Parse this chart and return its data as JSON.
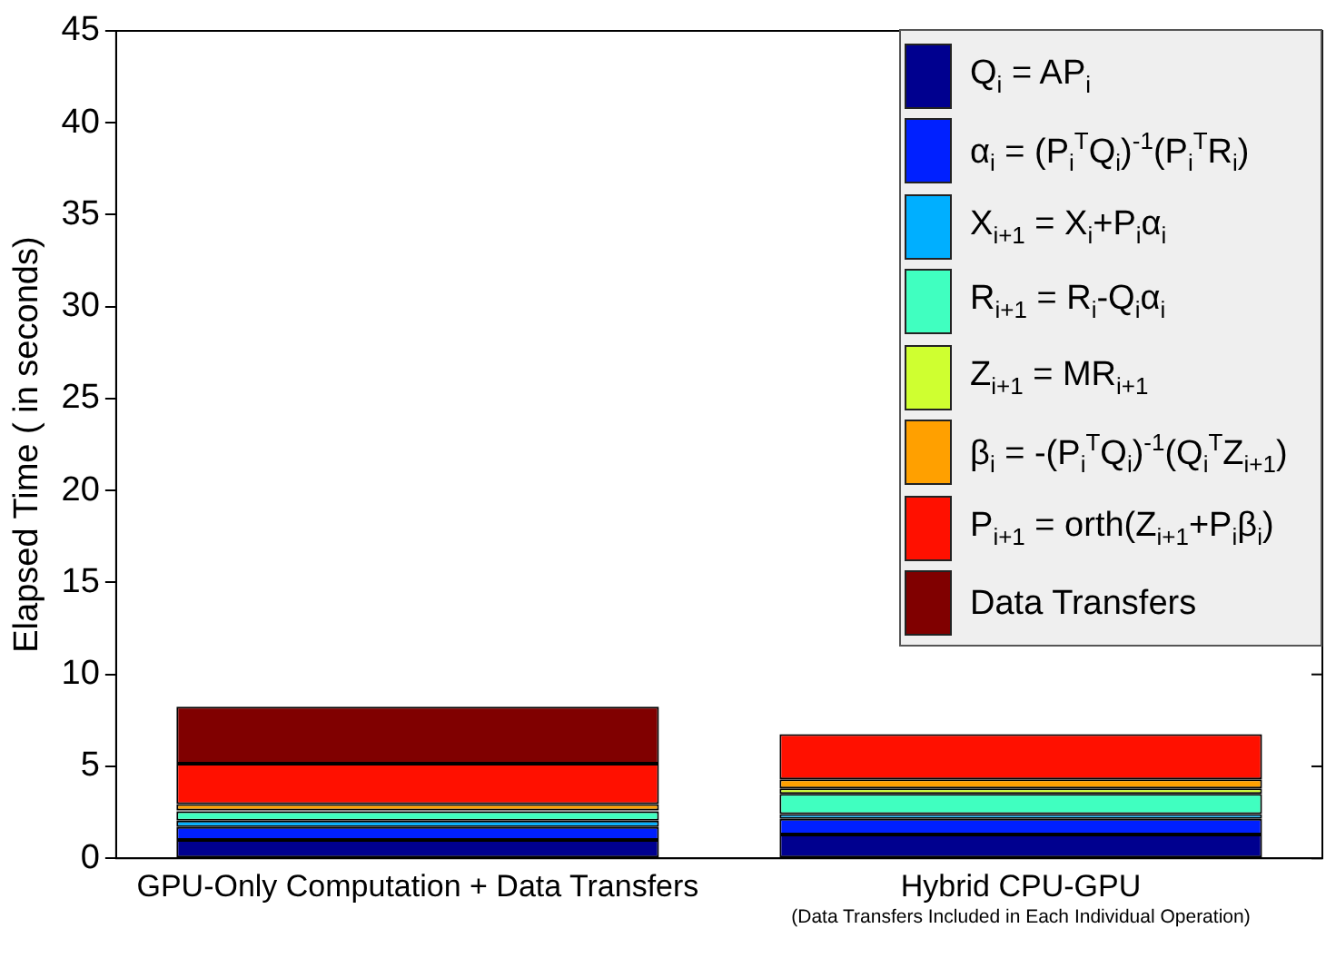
{
  "chart_data": {
    "type": "bar",
    "stacked": true,
    "ylabel": "Elapsed Time ( in seconds)",
    "categories": [
      "GPU-Only Computation + Data Transfers",
      "Hybrid CPU-GPU"
    ],
    "series": [
      {
        "name": "Q$_{i}$ = AP$_{i}$",
        "color": "#00008f",
        "values": [
          1.0,
          1.3
        ]
      },
      {
        "name": "α$_{i}$ = (P$_{i}$$^{T}$Q$_{i}$)$^{-1}$(P$_{i}$$^{T}$R$_{i}$)",
        "color": "#0020ff",
        "values": [
          0.7,
          0.85
        ]
      },
      {
        "name": "X$_{i+1}$ = X$_{i}$+P$_{i}$α$_{i}$",
        "color": "#00afff",
        "values": [
          0.35,
          0.25
        ]
      },
      {
        "name": "R$_{i+1}$ = R$_{i}$-Q$_{i}$α$_{i}$",
        "color": "#40ffc0",
        "values": [
          0.5,
          1.1
        ]
      },
      {
        "name": "Z$_{i+1}$ = MR$_{i+1}$",
        "color": "#cfff30",
        "values": [
          0.05,
          0.3
        ]
      },
      {
        "name": "β$_{i}$ = -(P$_{i}$$^{T}$Q$_{i}$)$^{-1}$(Q$_{i}$$^{T}$Z$_{i+1}$)",
        "color": "#ffa000",
        "values": [
          0.35,
          0.5
        ]
      },
      {
        "name": "P$_{i+1}$ = orth(Z$_{i+1}$+P$_{i}$β$_{i}$)",
        "color": "#ff1000",
        "values": [
          2.2,
          2.45
        ]
      },
      {
        "name": "Data Transfers",
        "color": "#800000",
        "values": [
          3.1,
          0
        ]
      }
    ],
    "ylim": [
      0,
      45
    ],
    "yticks": [
      0,
      5,
      10,
      15,
      20,
      25,
      30,
      35,
      40,
      45
    ],
    "grid": false,
    "legend": "top right",
    "annotations": [
      "(Data Transfers Included in Each Individual Operation)"
    ]
  }
}
